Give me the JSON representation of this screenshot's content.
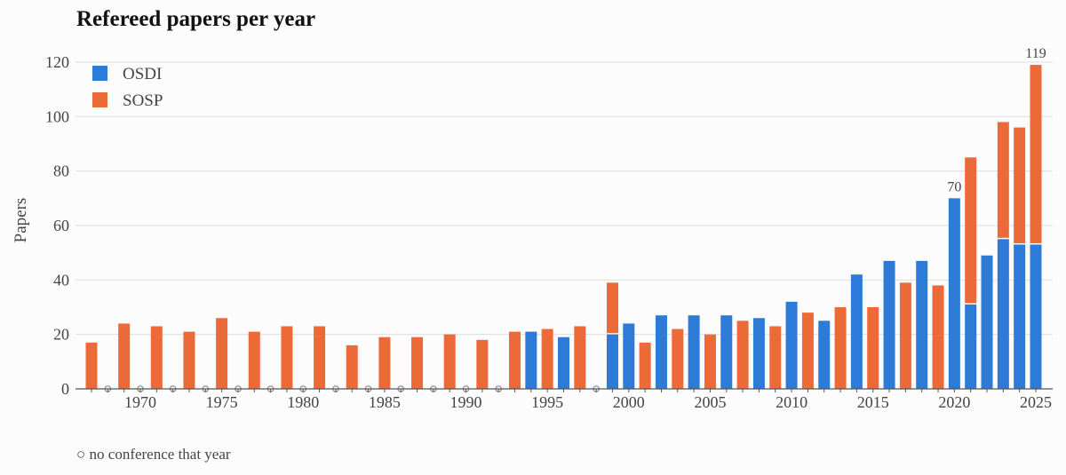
{
  "chart_data": {
    "type": "bar",
    "stacked": true,
    "title": "Refereed papers per year",
    "ylabel": "Papers",
    "xlabel": "",
    "ylim": [
      0,
      120
    ],
    "yticks": [
      0,
      20,
      40,
      60,
      80,
      100,
      120
    ],
    "xticks": [
      1970,
      1975,
      1980,
      1985,
      1990,
      1995,
      2000,
      2005,
      2010,
      2015,
      2020,
      2025
    ],
    "grid": true,
    "legend_position": "top-left",
    "x_range": [
      1967,
      2025
    ],
    "series": [
      {
        "name": "OSDI",
        "color": "#2d7bd6",
        "points": [
          [
            1994,
            21
          ],
          [
            1996,
            19
          ],
          [
            1999,
            20
          ],
          [
            2000,
            24
          ],
          [
            2002,
            27
          ],
          [
            2004,
            27
          ],
          [
            2006,
            27
          ],
          [
            2008,
            26
          ],
          [
            2010,
            32
          ],
          [
            2012,
            25
          ],
          [
            2014,
            42
          ],
          [
            2016,
            47
          ],
          [
            2018,
            47
          ],
          [
            2020,
            70
          ],
          [
            2021,
            31
          ],
          [
            2022,
            49
          ],
          [
            2023,
            55
          ],
          [
            2024,
            53
          ],
          [
            2025,
            53
          ]
        ]
      },
      {
        "name": "SOSP",
        "color": "#eb6a37",
        "points": [
          [
            1967,
            17
          ],
          [
            1969,
            24
          ],
          [
            1971,
            23
          ],
          [
            1973,
            21
          ],
          [
            1975,
            26
          ],
          [
            1977,
            21
          ],
          [
            1979,
            23
          ],
          [
            1981,
            23
          ],
          [
            1983,
            16
          ],
          [
            1985,
            19
          ],
          [
            1987,
            19
          ],
          [
            1989,
            20
          ],
          [
            1991,
            18
          ],
          [
            1993,
            21
          ],
          [
            1995,
            22
          ],
          [
            1997,
            23
          ],
          [
            1999,
            19
          ],
          [
            2001,
            17
          ],
          [
            2003,
            22
          ],
          [
            2005,
            20
          ],
          [
            2007,
            25
          ],
          [
            2009,
            23
          ],
          [
            2011,
            28
          ],
          [
            2013,
            30
          ],
          [
            2015,
            30
          ],
          [
            2017,
            39
          ],
          [
            2019,
            38
          ],
          [
            2021,
            54
          ],
          [
            2023,
            43
          ],
          [
            2024,
            43
          ],
          [
            2025,
            66
          ]
        ]
      }
    ],
    "no_conference_years": [
      1968,
      1970,
      1972,
      1974,
      1976,
      1978,
      1980,
      1982,
      1984,
      1986,
      1988,
      1990,
      1992,
      1998
    ],
    "annotations": [
      {
        "year": 2020,
        "text": "70"
      },
      {
        "year": 2025,
        "text": "119"
      }
    ],
    "footnote": "○ no conference that year"
  }
}
